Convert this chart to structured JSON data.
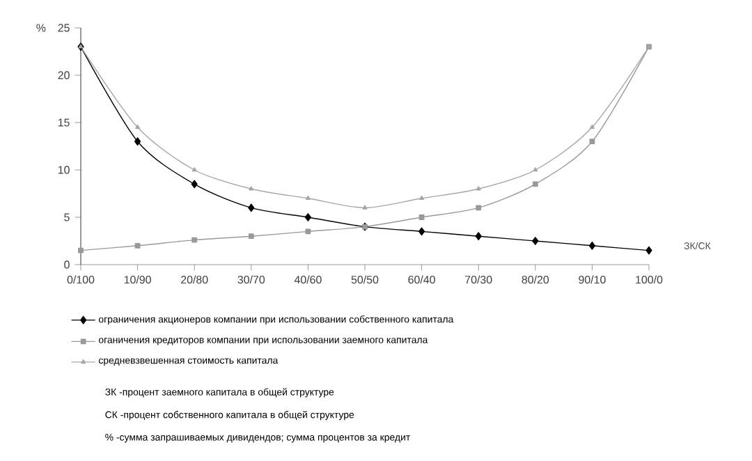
{
  "chart_data": {
    "type": "line",
    "ylabel": "%",
    "xlabel": "ЗК/СК",
    "categories": [
      "0/100",
      "10/90",
      "20/80",
      "30/70",
      "40/60",
      "50/50",
      "60/40",
      "70/30",
      "80/20",
      "90/10",
      "100/0"
    ],
    "ylim": [
      0,
      25
    ],
    "yticks": [
      0,
      5,
      10,
      15,
      20,
      25
    ],
    "grid": false,
    "legend": "bottom",
    "line_style": "solid",
    "series": [
      {
        "name": "ограничения акционеров компании при использовании собственного капитала",
        "color": "#000000",
        "marker": "diamond",
        "values": [
          23,
          13,
          8.5,
          6,
          5,
          4,
          3.5,
          3,
          2.5,
          2,
          1.5
        ]
      },
      {
        "name": "оганичения кредиторов компании при использовании заемного капитала",
        "color": "#999999",
        "marker": "square",
        "values": [
          1.5,
          2,
          2.6,
          3,
          3.5,
          4,
          5,
          6,
          8.5,
          13,
          23
        ]
      },
      {
        "name": "средневзвешенная стоимость капитала",
        "color": "#a6a6a6",
        "marker": "triangle",
        "values": [
          23,
          14.5,
          10,
          8,
          7,
          6,
          7,
          8,
          10,
          14.5,
          23
        ]
      }
    ],
    "annotations": [
      "ЗК -процент заемного капитала в общей структуре",
      "СК -процент собственного капитала в общей структуре",
      "% -сумма запрашиваемых дивидендов; сумма процентов за кредит"
    ]
  }
}
